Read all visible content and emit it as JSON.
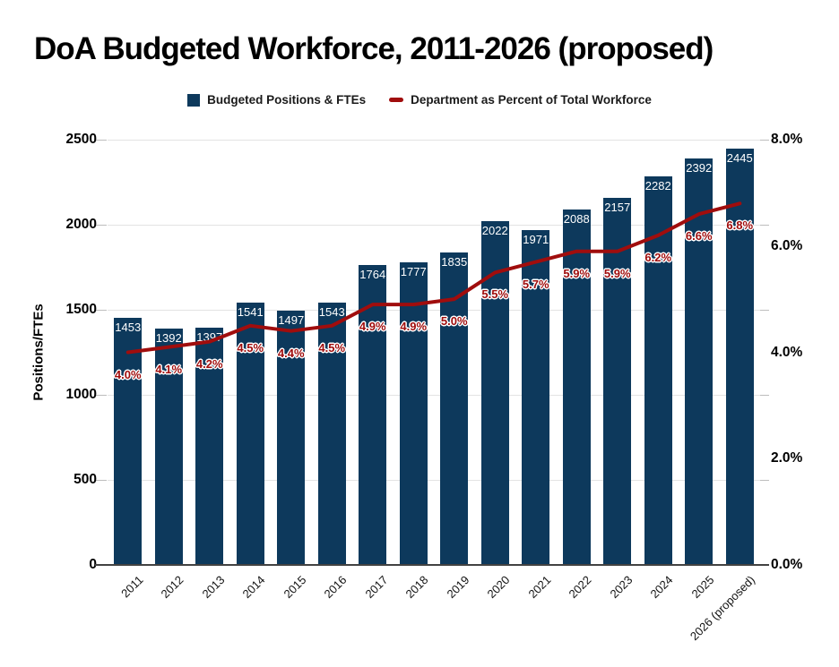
{
  "title": "DoA Budgeted Workforce, 2011-2026 (proposed)",
  "legend": [
    {
      "label": "Budgeted Positions & FTEs",
      "swatch": "square",
      "color": "#0d395c"
    },
    {
      "label": "Department as Percent of Total Workforce",
      "swatch": "dash",
      "color": "#a00d0d"
    }
  ],
  "chart_data": {
    "type": "bar+line",
    "title": "DoA Budgeted Workforce, 2011-2026 (proposed)",
    "categories": [
      "2011",
      "2012",
      "2013",
      "2014",
      "2015",
      "2016",
      "2017",
      "2018",
      "2019",
      "2020",
      "2021",
      "2022",
      "2023",
      "2024",
      "2025",
      "2026 (proposed)"
    ],
    "series": [
      {
        "name": "Budgeted Positions & FTEs",
        "type": "bar",
        "axis": "left",
        "color": "#0d395c",
        "values": [
          1453,
          1392,
          1397,
          1541,
          1497,
          1543,
          1764,
          1777,
          1835,
          2022,
          1971,
          2088,
          2157,
          2282,
          2392,
          2445
        ],
        "value_labels": [
          "1453",
          "1392",
          "1397",
          "1541",
          "1497",
          "1543",
          "1764",
          "1777",
          "1835",
          "2022",
          "1971",
          "2088",
          "2157",
          "2282",
          "2392",
          "2445"
        ]
      },
      {
        "name": "Department as Percent of Total Workforce",
        "type": "line",
        "axis": "right",
        "color": "#a00d0d",
        "values": [
          4.0,
          4.1,
          4.2,
          4.5,
          4.4,
          4.5,
          4.9,
          4.9,
          5.0,
          5.5,
          5.7,
          5.9,
          5.9,
          6.2,
          6.6,
          6.8
        ],
        "value_labels": [
          "4.0%",
          "4.1%",
          "4.2%",
          "4.5%",
          "4.4%",
          "4.5%",
          "4.9%",
          "4.9%",
          "5.0%",
          "5.5%",
          "5.7%",
          "5.9%",
          "5.9%",
          "6.2%",
          "6.6%",
          "6.8%"
        ]
      }
    ],
    "left_axis": {
      "title": "Positions/FTEs",
      "range": [
        0,
        2500
      ],
      "ticks": [
        0,
        500,
        1000,
        1500,
        2000,
        2500
      ],
      "tick_labels": [
        "0",
        "500",
        "1000",
        "1500",
        "2000",
        "2500"
      ]
    },
    "right_axis": {
      "title": "",
      "range": [
        0,
        8
      ],
      "ticks": [
        0,
        2,
        4,
        6,
        8
      ],
      "tick_labels": [
        "0.0%",
        "2.0%",
        "4.0%",
        "6.0%",
        "8.0%"
      ]
    },
    "grid": true,
    "legend_position": "top"
  }
}
